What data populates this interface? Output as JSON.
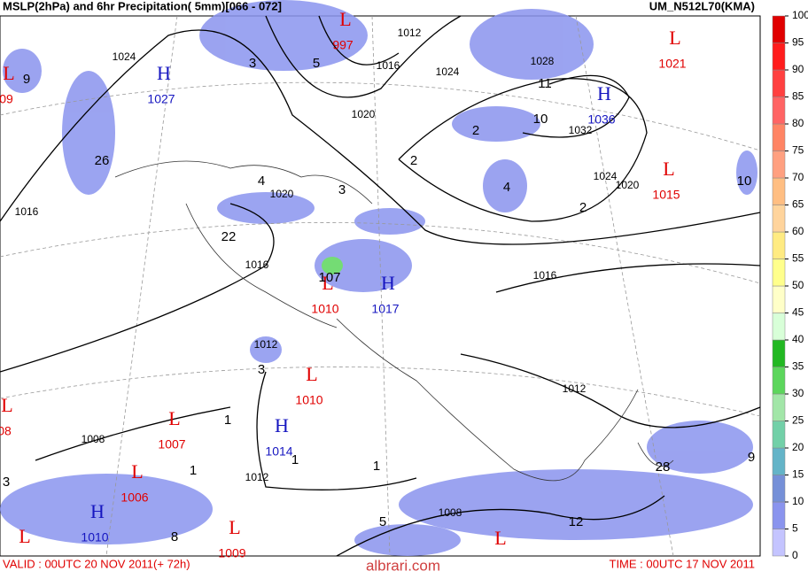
{
  "header": {
    "title": "MSLP(2hPa) and  6hr Precipitation( 5mm)[066 - 072]",
    "model": "UM_N512L70(KMA)"
  },
  "footer": {
    "valid": "VALID : 00UTC 20 NOV 2011(+ 72h)",
    "site": "albrari.com",
    "time": "TIME : 00UTC 17 NOV 2011"
  },
  "colorbar": {
    "ticks": [
      0,
      5,
      10,
      15,
      20,
      25,
      30,
      35,
      40,
      45,
      50,
      55,
      60,
      65,
      70,
      75,
      80,
      85,
      90,
      95,
      100
    ],
    "colors": [
      "#c4c4ff",
      "#8a94ee",
      "#7590d8",
      "#64b4c8",
      "#72d0a8",
      "#a2e6a8",
      "#5cd65c",
      "#22b822",
      "#d8ffd8",
      "#ffffc8",
      "#ffff8c",
      "#ffeb82",
      "#ffd49c",
      "#ffbe82",
      "#ffa080",
      "#ff8464",
      "#ff6464",
      "#ff4040",
      "#ff1c1c",
      "#e00000"
    ]
  },
  "map": {
    "high_color": "#1616c0",
    "low_color": "#e00000",
    "precip_color": "#8a94ee",
    "centers": [
      {
        "symbol": "L",
        "value": "09"
      },
      {
        "symbol": "H",
        "value": 1027
      },
      {
        "symbol": "L",
        "value": 997
      },
      {
        "symbol": "L",
        "value": 1021
      },
      {
        "symbol": "H",
        "value": 1036
      },
      {
        "symbol": "L",
        "value": 1015
      },
      {
        "symbol": "L",
        "value": 1010
      },
      {
        "symbol": "H",
        "value": 1017
      },
      {
        "symbol": "L",
        "value": 1010
      },
      {
        "symbol": "L",
        "value": "08"
      },
      {
        "symbol": "L",
        "value": 1007
      },
      {
        "symbol": "H",
        "value": 1014
      },
      {
        "symbol": "L",
        "value": 1006
      },
      {
        "symbol": "H",
        "value": 1010
      },
      {
        "symbol": "L"
      },
      {
        "symbol": "L",
        "value": 1009
      },
      {
        "symbol": "L"
      }
    ],
    "isobar_labels": [
      1024,
      1016,
      1020,
      1016,
      1020,
      1016,
      1012,
      1024,
      1028,
      1032,
      1024,
      1020,
      1016,
      1012,
      1012,
      1008,
      1012,
      1008
    ],
    "precip_labels": [
      9,
      3,
      5,
      26,
      4,
      3,
      22,
      107,
      2,
      10,
      11,
      2,
      4,
      2,
      10,
      3,
      1,
      1,
      1,
      1,
      3,
      28,
      9,
      5,
      12,
      8
    ]
  }
}
